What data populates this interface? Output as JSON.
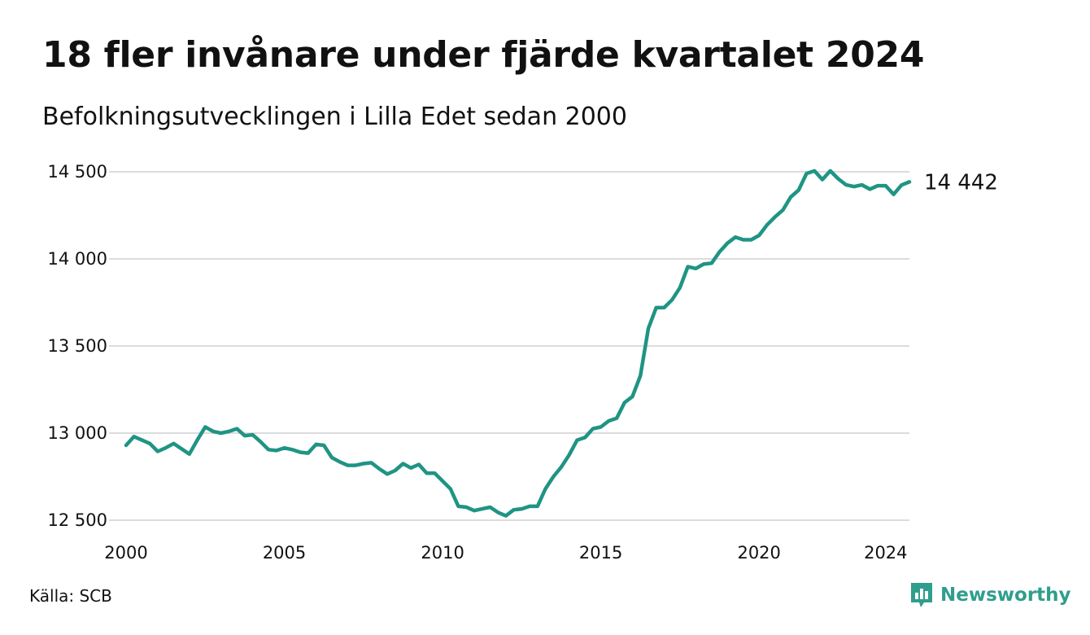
{
  "header": {
    "title": "18 fler invånare under fjärde kvartalet 2024",
    "subtitle": "Befolkningsutvecklingen i Lilla Edet sedan 2000"
  },
  "footer": {
    "source": "Källa: SCB",
    "brand": "Newsworthy",
    "brand_color": "#2f9e8c"
  },
  "icons": {
    "brand_logo": "newsworthy-logo-icon"
  },
  "chart_data": {
    "type": "line",
    "title": "18 fler invånare under fjärde kvartalet 2024",
    "subtitle": "Befolkningsutvecklingen i Lilla Edet sedan 2000",
    "xlabel": "",
    "ylabel": "",
    "xlim": [
      2000,
      2024.75
    ],
    "ylim": [
      12500,
      14500
    ],
    "x_ticks": [
      2000,
      2005,
      2010,
      2015,
      2020,
      2024
    ],
    "x_tick_labels": [
      "2000",
      "2005",
      "2010",
      "2015",
      "2020",
      "2024"
    ],
    "y_ticks": [
      12500,
      13000,
      13500,
      14000,
      14500
    ],
    "y_tick_labels": [
      "12 500",
      "13 000",
      "13 500",
      "14 000",
      "14 500"
    ],
    "grid": "horizontal",
    "line_color": "#1f9484",
    "end_label": "14 442",
    "series": [
      {
        "x": [
          2000,
          2000.25,
          2000.5,
          2000.75,
          2001,
          2001.25,
          2001.5,
          2001.75,
          2002,
          2002.25,
          2002.5,
          2002.75,
          2003,
          2003.25,
          2003.5,
          2003.75,
          2004,
          2004.25,
          2004.5,
          2004.75,
          2005,
          2005.25,
          2005.5,
          2005.75,
          2006,
          2006.25,
          2006.5,
          2006.75,
          2007,
          2007.25,
          2007.5,
          2007.75,
          2008,
          2008.25,
          2008.5,
          2008.75,
          2009,
          2009.25,
          2009.5,
          2009.75,
          2010,
          2010.25,
          2010.5,
          2010.75,
          2011,
          2011.25,
          2011.5,
          2011.75,
          2012,
          2012.25,
          2012.5,
          2012.75,
          2013,
          2013.25,
          2013.5,
          2013.75,
          2014,
          2014.25,
          2014.5,
          2014.75,
          2015,
          2015.25,
          2015.5,
          2015.75,
          2016,
          2016.25,
          2016.5,
          2016.75,
          2017,
          2017.25,
          2017.5,
          2017.75,
          2018,
          2018.25,
          2018.5,
          2018.75,
          2019,
          2019.25,
          2019.5,
          2019.75,
          2020,
          2020.25,
          2020.5,
          2020.75,
          2021,
          2021.25,
          2021.5,
          2021.75,
          2022,
          2022.25,
          2022.5,
          2022.75,
          2023,
          2023.25,
          2023.5,
          2023.75,
          2024,
          2024.25,
          2024.5,
          2024.75
        ],
        "values": [
          12930,
          12980,
          12960,
          12940,
          12895,
          12915,
          12940,
          12910,
          12880,
          12960,
          13035,
          13010,
          13000,
          13010,
          13025,
          12985,
          12990,
          12950,
          12905,
          12900,
          12915,
          12905,
          12890,
          12885,
          12935,
          12930,
          12860,
          12835,
          12815,
          12815,
          12825,
          12830,
          12795,
          12765,
          12785,
          12825,
          12800,
          12820,
          12770,
          12770,
          12725,
          12680,
          12580,
          12575,
          12555,
          12565,
          12575,
          12545,
          12525,
          12560,
          12565,
          12580,
          12580,
          12680,
          12750,
          12805,
          12875,
          12960,
          12975,
          13025,
          13035,
          13070,
          13085,
          13175,
          13210,
          13330,
          13600,
          13720,
          13720,
          13765,
          13835,
          13955,
          13945,
          13970,
          13975,
          14040,
          14090,
          14125,
          14110,
          14110,
          14135,
          14195,
          14240,
          14280,
          14355,
          14395,
          14490,
          14505,
          14455,
          14505,
          14460,
          14425,
          14415,
          14425,
          14400,
          14420,
          14420,
          14370,
          14424,
          14442
        ]
      }
    ]
  }
}
